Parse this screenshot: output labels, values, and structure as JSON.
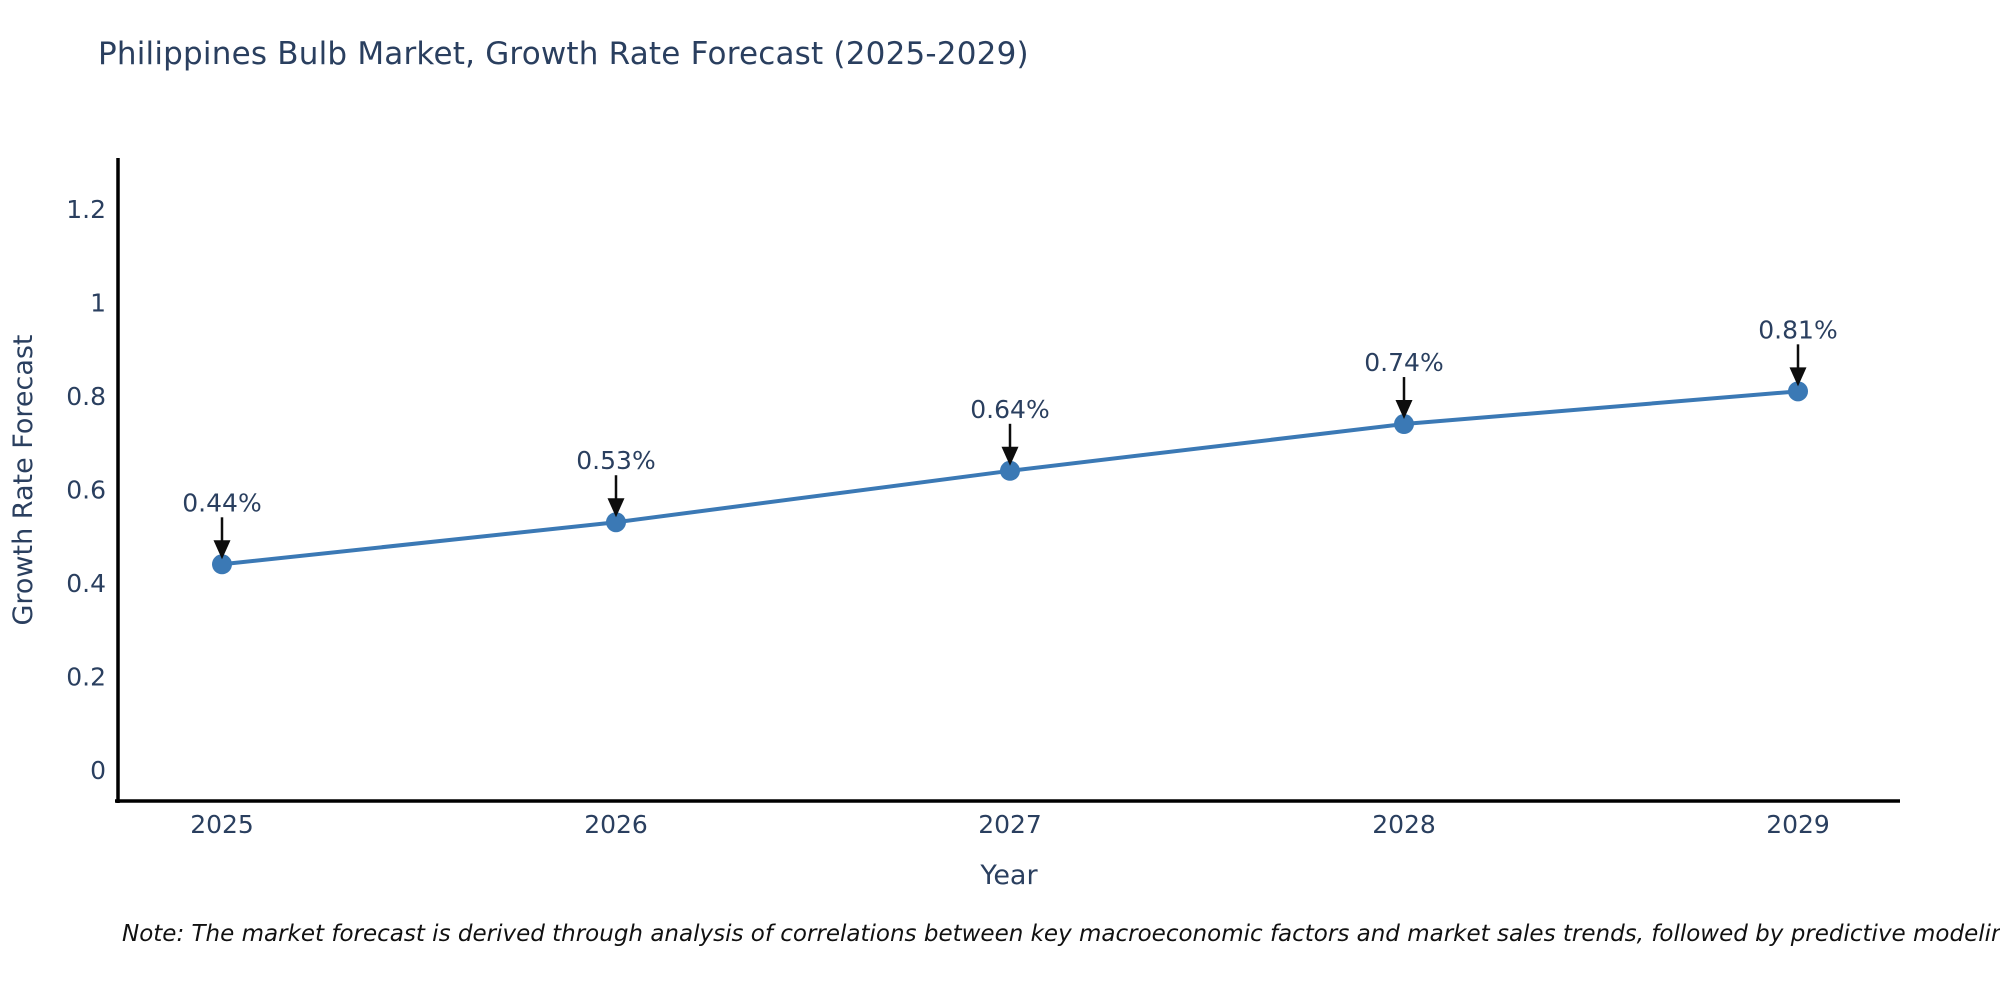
{
  "title": "Philippines Bulb Market, Growth Rate Forecast (2025-2029)",
  "note": "Note: The market forecast is derived through analysis of correlations between key macroeconomic factors and market sales trends, followed by predictive modeling to project future sales",
  "chart_data": {
    "type": "line",
    "title": "Philippines Bulb Market, Growth Rate Forecast (2025-2029)",
    "categories": [
      "2025",
      "2026",
      "2027",
      "2028",
      "2029"
    ],
    "values": [
      0.44,
      0.53,
      0.64,
      0.74,
      0.81
    ],
    "point_labels": [
      "0.44%",
      "0.53%",
      "0.64%",
      "0.74%",
      "0.81%"
    ],
    "xlabel": "Year",
    "ylabel": "Growth Rate Forecast",
    "ytick_labels": [
      "0",
      "0.2",
      "0.4",
      "0.6",
      "0.8",
      "1",
      "1.2"
    ],
    "yticks": [
      0,
      0.2,
      0.4,
      0.6,
      0.8,
      1,
      1.2
    ],
    "ylim": [
      -0.07,
      1.37
    ],
    "grid": false,
    "legend_position": "none",
    "annotation_style": "value label with downward arrow to marker",
    "colors": {
      "line": "#3b79b5",
      "marker": "#3b79b5",
      "axis": "#000000",
      "chart_text": "#2a3f5f",
      "arrow": "#0d0d0d",
      "note_text": "#111111",
      "background": "#ffffff"
    }
  }
}
